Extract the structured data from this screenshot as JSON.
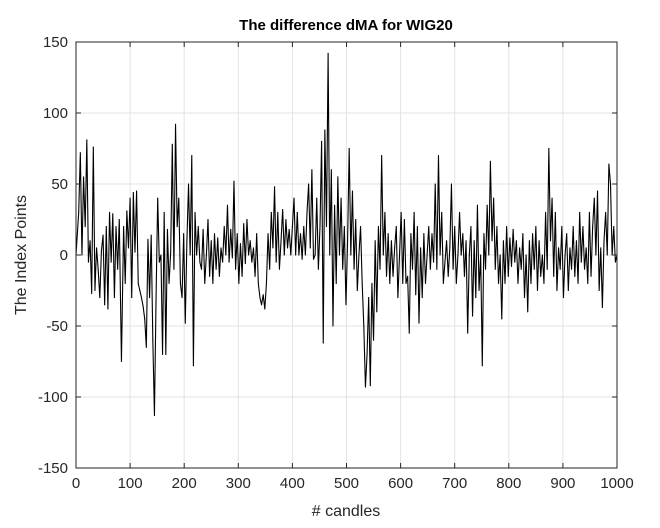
{
  "chart_data": {
    "type": "line",
    "title": "The difference dMA for WIG20",
    "xlabel": "# candles",
    "ylabel": "The Index Points",
    "xlim": [
      0,
      1000
    ],
    "ylim": [
      -150,
      150
    ],
    "xticks": [
      0,
      100,
      200,
      300,
      400,
      500,
      600,
      700,
      800,
      900,
      1000
    ],
    "yticks": [
      -150,
      -100,
      -50,
      0,
      50,
      100,
      150
    ],
    "grid": true,
    "legend": "none",
    "colors": {
      "line": "#000000",
      "grid": "#e3e3e3",
      "axes": "#262626"
    },
    "series": [
      {
        "values": [
          [
            0,
            0
          ],
          [
            5,
            30
          ],
          [
            8,
            72
          ],
          [
            11,
            0
          ],
          [
            14,
            55
          ],
          [
            17,
            20
          ],
          [
            20,
            81
          ],
          [
            23,
            -5
          ],
          [
            26,
            10
          ],
          [
            29,
            -27
          ],
          [
            32,
            76
          ],
          [
            35,
            -25
          ],
          [
            38,
            5
          ],
          [
            41,
            -10
          ],
          [
            44,
            -30
          ],
          [
            47,
            3
          ],
          [
            50,
            14
          ],
          [
            53,
            -35
          ],
          [
            56,
            20
          ],
          [
            59,
            -38
          ],
          [
            62,
            30
          ],
          [
            65,
            -5
          ],
          [
            68,
            29
          ],
          [
            71,
            -30
          ],
          [
            74,
            20
          ],
          [
            77,
            -10
          ],
          [
            80,
            25
          ],
          [
            84,
            -75
          ],
          [
            88,
            20
          ],
          [
            91,
            -20
          ],
          [
            94,
            31
          ],
          [
            97,
            5
          ],
          [
            100,
            40
          ],
          [
            103,
            -30
          ],
          [
            106,
            44
          ],
          [
            109,
            2
          ],
          [
            112,
            45
          ],
          [
            115,
            -20
          ],
          [
            118,
            -25
          ],
          [
            121,
            -30
          ],
          [
            124,
            -36
          ],
          [
            127,
            -45
          ],
          [
            130,
            -65
          ],
          [
            133,
            11
          ],
          [
            136,
            -30
          ],
          [
            139,
            14
          ],
          [
            142,
            -60
          ],
          [
            145,
            -113
          ],
          [
            148,
            -30
          ],
          [
            151,
            40
          ],
          [
            154,
            -5
          ],
          [
            157,
            0
          ],
          [
            160,
            -70
          ],
          [
            163,
            30
          ],
          [
            166,
            -70
          ],
          [
            169,
            18
          ],
          [
            172,
            -20
          ],
          [
            175,
            2
          ],
          [
            178,
            78
          ],
          [
            181,
            -10
          ],
          [
            184,
            92
          ],
          [
            187,
            20
          ],
          [
            190,
            40
          ],
          [
            193,
            -20
          ],
          [
            196,
            -30
          ],
          [
            199,
            15
          ],
          [
            202,
            -48
          ],
          [
            205,
            10
          ],
          [
            208,
            50
          ],
          [
            211,
            0
          ],
          [
            214,
            70
          ],
          [
            217,
            -78
          ],
          [
            220,
            30
          ],
          [
            223,
            0
          ],
          [
            226,
            20
          ],
          [
            229,
            -5
          ],
          [
            232,
            -10
          ],
          [
            235,
            18
          ],
          [
            238,
            -20
          ],
          [
            241,
            0
          ],
          [
            244,
            25
          ],
          [
            247,
            -15
          ],
          [
            250,
            10
          ],
          [
            253,
            -20
          ],
          [
            256,
            15
          ],
          [
            259,
            -10
          ],
          [
            262,
            12
          ],
          [
            265,
            -15
          ],
          [
            268,
            5
          ],
          [
            271,
            -5
          ],
          [
            274,
            20
          ],
          [
            277,
            0
          ],
          [
            280,
            35
          ],
          [
            283,
            -5
          ],
          [
            286,
            18
          ],
          [
            289,
            -2
          ],
          [
            292,
            52
          ],
          [
            295,
            -10
          ],
          [
            298,
            15
          ],
          [
            301,
            -20
          ],
          [
            304,
            8
          ],
          [
            307,
            -15
          ],
          [
            310,
            22
          ],
          [
            313,
            -6
          ],
          [
            316,
            25
          ],
          [
            319,
            0
          ],
          [
            322,
            10
          ],
          [
            325,
            -5
          ],
          [
            328,
            5
          ],
          [
            331,
            -15
          ],
          [
            334,
            15
          ],
          [
            337,
            -20
          ],
          [
            340,
            -30
          ],
          [
            343,
            -35
          ],
          [
            346,
            -28
          ],
          [
            349,
            -38
          ],
          [
            352,
            -20
          ],
          [
            355,
            15
          ],
          [
            358,
            -10
          ],
          [
            361,
            30
          ],
          [
            364,
            5
          ],
          [
            367,
            48
          ],
          [
            370,
            -5
          ],
          [
            373,
            30
          ],
          [
            376,
            -10
          ],
          [
            379,
            10
          ],
          [
            382,
            32
          ],
          [
            385,
            0
          ],
          [
            388,
            25
          ],
          [
            391,
            5
          ],
          [
            394,
            18
          ],
          [
            397,
            0
          ],
          [
            400,
            20
          ],
          [
            403,
            40
          ],
          [
            406,
            0
          ],
          [
            409,
            30
          ],
          [
            412,
            0
          ],
          [
            415,
            15
          ],
          [
            418,
            -3
          ],
          [
            421,
            20
          ],
          [
            424,
            0
          ],
          [
            427,
            30
          ],
          [
            430,
            50
          ],
          [
            433,
            5
          ],
          [
            436,
            60
          ],
          [
            439,
            -3
          ],
          [
            442,
            0
          ],
          [
            445,
            40
          ],
          [
            448,
            -10
          ],
          [
            451,
            20
          ],
          [
            454,
            80
          ],
          [
            457,
            -62
          ],
          [
            460,
            88
          ],
          [
            463,
            20
          ],
          [
            466,
            142
          ],
          [
            469,
            0
          ],
          [
            472,
            60
          ],
          [
            475,
            -50
          ],
          [
            478,
            35
          ],
          [
            481,
            -20
          ],
          [
            484,
            55
          ],
          [
            487,
            0
          ],
          [
            490,
            40
          ],
          [
            493,
            -10
          ],
          [
            496,
            20
          ],
          [
            499,
            -35
          ],
          [
            502,
            10
          ],
          [
            505,
            75
          ],
          [
            508,
            0
          ],
          [
            511,
            45
          ],
          [
            514,
            -10
          ],
          [
            517,
            25
          ],
          [
            520,
            -25
          ],
          [
            523,
            0
          ],
          [
            526,
            20
          ],
          [
            529,
            -20
          ],
          [
            532,
            -50
          ],
          [
            535,
            -93
          ],
          [
            538,
            -70
          ],
          [
            541,
            -30
          ],
          [
            544,
            -92
          ],
          [
            547,
            -20
          ],
          [
            550,
            -60
          ],
          [
            553,
            10
          ],
          [
            556,
            -40
          ],
          [
            559,
            20
          ],
          [
            562,
            -10
          ],
          [
            565,
            70
          ],
          [
            568,
            0
          ],
          [
            571,
            30
          ],
          [
            574,
            -15
          ],
          [
            577,
            15
          ],
          [
            580,
            -20
          ],
          [
            583,
            10
          ],
          [
            586,
            -15
          ],
          [
            589,
            5
          ],
          [
            592,
            20
          ],
          [
            595,
            -30
          ],
          [
            598,
            0
          ],
          [
            601,
            30
          ],
          [
            604,
            -20
          ],
          [
            607,
            25
          ],
          [
            610,
            -20
          ],
          [
            613,
            -15
          ],
          [
            616,
            -55
          ],
          [
            619,
            15
          ],
          [
            622,
            -10
          ],
          [
            625,
            30
          ],
          [
            628,
            -28
          ],
          [
            631,
            20
          ],
          [
            634,
            -48
          ],
          [
            637,
            5
          ],
          [
            640,
            -30
          ],
          [
            643,
            15
          ],
          [
            646,
            -20
          ],
          [
            649,
            0
          ],
          [
            652,
            20
          ],
          [
            655,
            -10
          ],
          [
            658,
            15
          ],
          [
            661,
            -5
          ],
          [
            664,
            50
          ],
          [
            667,
            -10
          ],
          [
            670,
            70
          ],
          [
            673,
            0
          ],
          [
            676,
            30
          ],
          [
            679,
            -20
          ],
          [
            682,
            -5
          ],
          [
            685,
            10
          ],
          [
            688,
            -15
          ],
          [
            691,
            5
          ],
          [
            694,
            50
          ],
          [
            697,
            -10
          ],
          [
            700,
            20
          ],
          [
            703,
            -20
          ],
          [
            706,
            0
          ],
          [
            709,
            30
          ],
          [
            712,
            0
          ],
          [
            715,
            15
          ],
          [
            718,
            -15
          ],
          [
            721,
            10
          ],
          [
            724,
            -55
          ],
          [
            727,
            0
          ],
          [
            730,
            20
          ],
          [
            733,
            -43
          ],
          [
            736,
            10
          ],
          [
            739,
            -30
          ],
          [
            742,
            35
          ],
          [
            745,
            -25
          ],
          [
            748,
            0
          ],
          [
            751,
            -78
          ],
          [
            754,
            15
          ],
          [
            757,
            -10
          ],
          [
            760,
            35
          ],
          [
            763,
            0
          ],
          [
            766,
            66
          ],
          [
            769,
            10
          ],
          [
            772,
            40
          ],
          [
            775,
            -10
          ],
          [
            778,
            20
          ],
          [
            781,
            -20
          ],
          [
            784,
            0
          ],
          [
            787,
            -45
          ],
          [
            790,
            10
          ],
          [
            793,
            -20
          ],
          [
            796,
            20
          ],
          [
            799,
            -15
          ],
          [
            802,
            12
          ],
          [
            805,
            -8
          ],
          [
            808,
            18
          ],
          [
            811,
            -5
          ],
          [
            814,
            10
          ],
          [
            817,
            -20
          ],
          [
            820,
            5
          ],
          [
            823,
            -10
          ],
          [
            826,
            15
          ],
          [
            829,
            -30
          ],
          [
            832,
            0
          ],
          [
            835,
            -40
          ],
          [
            838,
            10
          ],
          [
            841,
            -20
          ],
          [
            844,
            15
          ],
          [
            847,
            -10
          ],
          [
            850,
            20
          ],
          [
            853,
            -25
          ],
          [
            856,
            10
          ],
          [
            859,
            -15
          ],
          [
            862,
            0
          ],
          [
            865,
            -20
          ],
          [
            868,
            30
          ],
          [
            871,
            -10
          ],
          [
            874,
            75
          ],
          [
            877,
            10
          ],
          [
            880,
            40
          ],
          [
            883,
            -15
          ],
          [
            886,
            30
          ],
          [
            889,
            -25
          ],
          [
            892,
            5
          ],
          [
            895,
            -10
          ],
          [
            898,
            20
          ],
          [
            901,
            -30
          ],
          [
            904,
            0
          ],
          [
            907,
            15
          ],
          [
            910,
            -25
          ],
          [
            913,
            5
          ],
          [
            916,
            -10
          ],
          [
            919,
            20
          ],
          [
            922,
            -15
          ],
          [
            925,
            10
          ],
          [
            928,
            -20
          ],
          [
            931,
            30
          ],
          [
            934,
            -5
          ],
          [
            937,
            20
          ],
          [
            940,
            -10
          ],
          [
            943,
            5
          ],
          [
            946,
            -20
          ],
          [
            949,
            30
          ],
          [
            952,
            -15
          ],
          [
            955,
            20
          ],
          [
            958,
            40
          ],
          [
            961,
            0
          ],
          [
            964,
            45
          ],
          [
            967,
            -25
          ],
          [
            970,
            5
          ],
          [
            973,
            -37
          ],
          [
            976,
            10
          ],
          [
            979,
            30
          ],
          [
            982,
            0
          ],
          [
            985,
            64
          ],
          [
            988,
            50
          ],
          [
            991,
            0
          ],
          [
            994,
            20
          ],
          [
            997,
            -5
          ],
          [
            1000,
            0
          ]
        ]
      }
    ]
  }
}
